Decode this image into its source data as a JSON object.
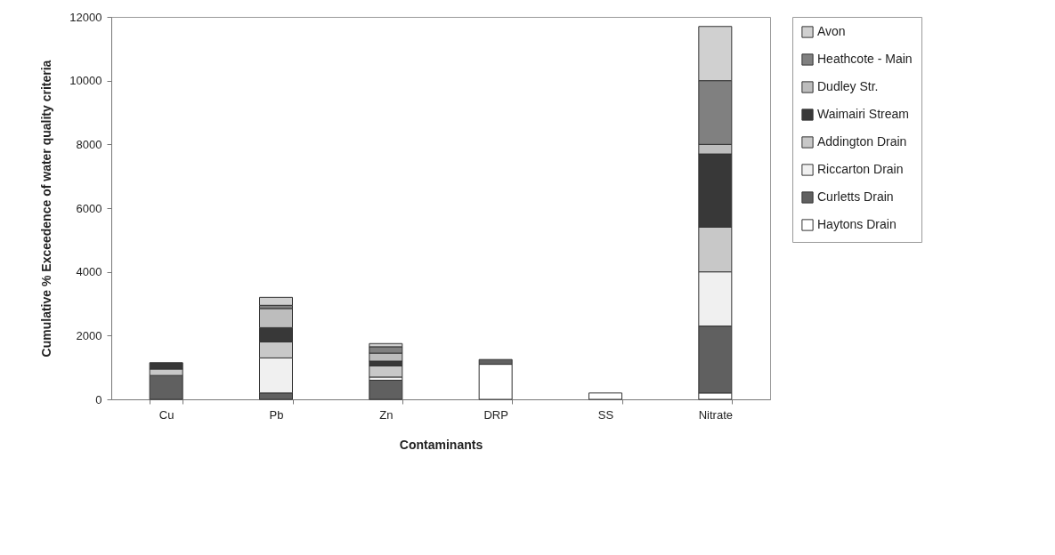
{
  "chart_data": {
    "type": "bar",
    "stacked": true,
    "xlabel": "Contaminants",
    "ylabel": "Cumulative % Exceedence of water quality criteria",
    "categories": [
      "Cu",
      "Pb",
      "Zn",
      "DRP",
      "SS",
      "Nitrate"
    ],
    "ylim": [
      0,
      12000
    ],
    "yticks": [
      0,
      2000,
      4000,
      6000,
      8000,
      10000,
      12000
    ],
    "grid": false,
    "legend": "right",
    "series": [
      {
        "name": "Haytons Drain",
        "color": "#ffffff",
        "values": [
          null,
          null,
          null,
          1100,
          200,
          200
        ]
      },
      {
        "name": "Curletts Drain",
        "color": "#606060",
        "values": [
          750,
          200,
          600,
          150,
          null,
          2100
        ]
      },
      {
        "name": "Riccarton Drain",
        "color": "#f0f0f0",
        "values": [
          null,
          1100,
          100,
          null,
          null,
          1700
        ]
      },
      {
        "name": "Addington Drain",
        "color": "#c8c8c8",
        "values": [
          200,
          500,
          350,
          null,
          null,
          1400
        ]
      },
      {
        "name": "Waimairi Stream",
        "color": "#383838",
        "values": [
          200,
          450,
          150,
          null,
          null,
          2300
        ]
      },
      {
        "name": "Dudley Str.",
        "color": "#bdbdbd",
        "values": [
          null,
          600,
          250,
          null,
          null,
          300
        ]
      },
      {
        "name": "Heathcote - Main",
        "color": "#808080",
        "values": [
          null,
          100,
          200,
          null,
          null,
          2000
        ]
      },
      {
        "name": "Avon",
        "color": "#d0d0d0",
        "values": [
          null,
          250,
          100,
          null,
          null,
          1700
        ]
      }
    ]
  }
}
